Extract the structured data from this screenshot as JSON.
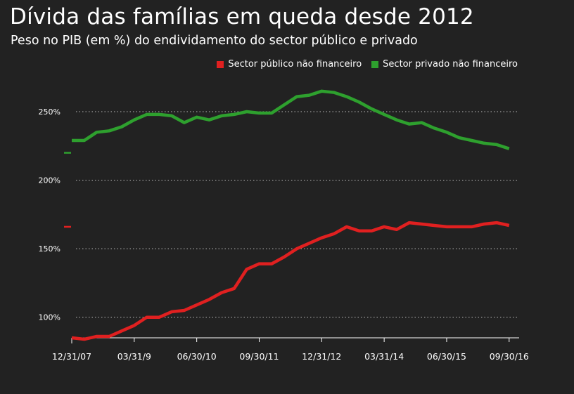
{
  "chart_data": {
    "type": "line",
    "title": "Dívida das famílias em queda desde 2012",
    "subtitle": "Peso no PIB (em %) do endividamento do sector público e privado",
    "ylim": [
      85,
      270
    ],
    "yticks": [
      100,
      150,
      200,
      250
    ],
    "ytick_labels": [
      "100%",
      "150%",
      "200%",
      "250%"
    ],
    "x": [
      0,
      1,
      2,
      3,
      4,
      5,
      6,
      7,
      8,
      9,
      10,
      11,
      12,
      13,
      14,
      15,
      16,
      17,
      18,
      19,
      20,
      21,
      22,
      23,
      24,
      25,
      26,
      27,
      28,
      29,
      30,
      31,
      32,
      33,
      34,
      35
    ],
    "xlim": [
      0,
      35.8
    ],
    "xticks": [
      0,
      5,
      10,
      15,
      20,
      25,
      30,
      35
    ],
    "xtick_labels": [
      "12/31/07",
      "03/31/9",
      "06/30/10",
      "09/30/11",
      "12/31/12",
      "03/31/14",
      "06/30/15",
      "09/30/16"
    ],
    "grid": true,
    "legend_position": "top-right",
    "series": [
      {
        "name": "Sector público não financeiro",
        "color": "#e02020",
        "start_marker": 166,
        "values": [
          85,
          84,
          86,
          86,
          90,
          94,
          100,
          100,
          104,
          105,
          109,
          113,
          118,
          121,
          135,
          139,
          139,
          144,
          150,
          154,
          158,
          161,
          166,
          163,
          163,
          166,
          164,
          169,
          168,
          167,
          166,
          166,
          166,
          168,
          169,
          167
        ]
      },
      {
        "name": "Sector privado não financeiro",
        "color": "#2ea02e",
        "start_marker": 220,
        "values": [
          229,
          229,
          235,
          236,
          239,
          244,
          248,
          248,
          247,
          242,
          246,
          244,
          247,
          248,
          250,
          249,
          249,
          255,
          261,
          262,
          265,
          264,
          261,
          257,
          252,
          248,
          244,
          241,
          242,
          238,
          235,
          231,
          229,
          227,
          226,
          223
        ]
      }
    ]
  }
}
